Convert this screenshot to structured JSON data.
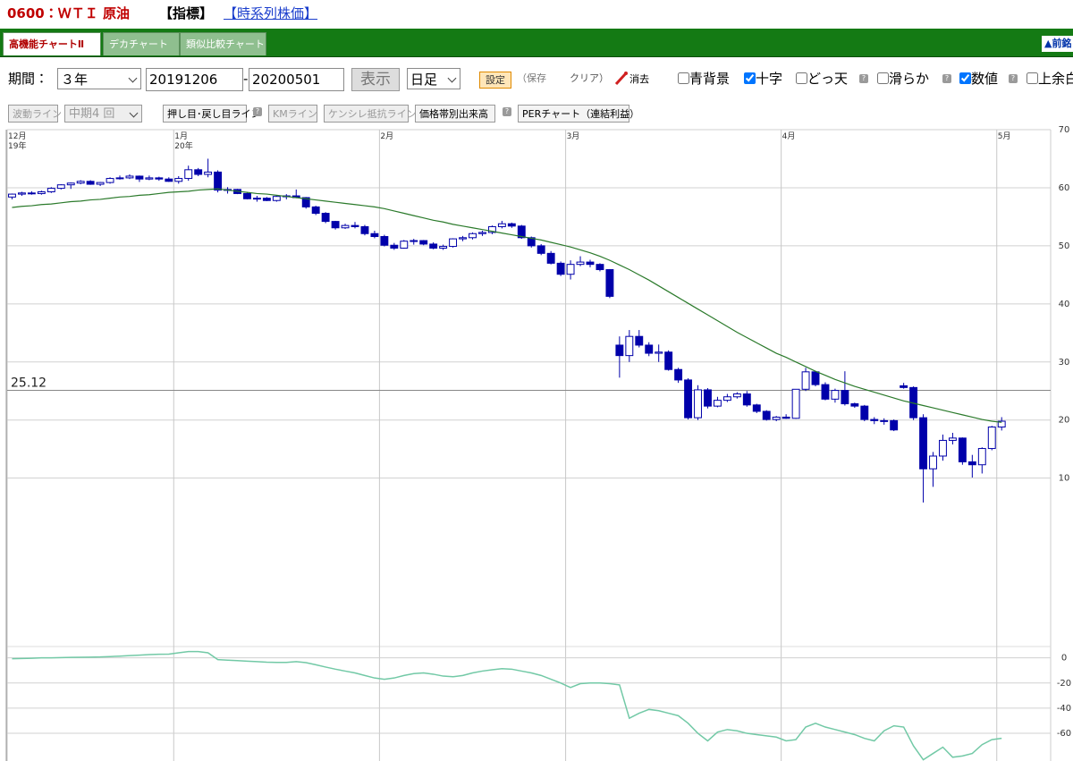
{
  "header": {
    "title": "0600：ＷＴＩ 原油",
    "indicator": "【指標】",
    "link": "【時系列株価】"
  },
  "tabs": [
    "高機能チャートⅡ",
    "デカチャート",
    "類似比較チャート"
  ],
  "prev_button": "▲前銘",
  "help_mark": "?",
  "toolbar": {
    "period_label": "期間：",
    "period": "３年",
    "start": "20191206",
    "dash": "-",
    "end": "20200501",
    "show": "表示",
    "interval": "日足",
    "settings": "設定",
    "save": "（保存",
    "clear": "クリア）",
    "erase": "消去",
    "options": [
      {
        "label": "青背景",
        "checked": false
      },
      {
        "label": "十字",
        "checked": true
      },
      {
        "label": "どっ天",
        "checked": false
      },
      {
        "label": "滑らか",
        "checked": false
      },
      {
        "label": "数値",
        "checked": true
      },
      {
        "label": "上余白",
        "checked": false
      }
    ]
  },
  "toolbar2": {
    "wave": "波動ライン",
    "term": "中期4 回",
    "pushback": "押し目･戻し目ライン",
    "km": "KMライン",
    "kenshire": "ケンシレ抵抗ライン",
    "volume_profile": "価格帯別出来高",
    "per": "PERチャート（連結利益）"
  },
  "chart_data": [
    {
      "type": "candlestick",
      "open": [
        58.4,
        58.9,
        59.1,
        59.0,
        59.3,
        59.9,
        60.5,
        60.8,
        61.1,
        60.6,
        60.9,
        61.6,
        61.7,
        62.0,
        61.5,
        61.7,
        61.5,
        61.1,
        61.6,
        63.1,
        62.3,
        62.7,
        59.6,
        59.7,
        59.0,
        58.1,
        58.2,
        57.8,
        58.5,
        58.6,
        58.3,
        56.7,
        55.6,
        54.2,
        53.1,
        53.5,
        53.3,
        52.1,
        51.6,
        50.1,
        49.6,
        50.8,
        50.9,
        50.3,
        49.6,
        49.9,
        51.2,
        51.4,
        52.1,
        52.3,
        53.3,
        53.8,
        53.4,
        51.4,
        50.0,
        48.7,
        47.0,
        45.1,
        46.8,
        47.2,
        46.8,
        45.9,
        32.9,
        31.1,
        34.4,
        32.9,
        31.5,
        31.7,
        28.7,
        26.9,
        20.4,
        25.2,
        22.4,
        23.4,
        24.0,
        24.5,
        22.6,
        21.5,
        20.1,
        20.5,
        20.3,
        25.3,
        28.3,
        26.1,
        23.6,
        25.1,
        22.8,
        22.4,
        20.1,
        19.9,
        19.9,
        25.9,
        25.6,
        20.4,
        11.6,
        13.8,
        16.5,
        16.9,
        12.8,
        12.3,
        15.1,
        18.8
      ],
      "high": [
        59.0,
        59.3,
        59.4,
        59.5,
        60.1,
        60.6,
        60.9,
        61.3,
        61.3,
        61.0,
        61.8,
        62.1,
        62.3,
        62.1,
        62.1,
        61.9,
        61.8,
        62.0,
        63.8,
        63.4,
        65.0,
        63.0,
        60.1,
        59.8,
        59.3,
        58.6,
        58.4,
        58.7,
        58.9,
        59.7,
        58.4,
        56.9,
        55.8,
        54.3,
        53.8,
        54.1,
        53.6,
        52.6,
        51.9,
        50.5,
        51.0,
        51.2,
        51.0,
        50.6,
        50.2,
        51.3,
        51.7,
        52.3,
        52.6,
        53.5,
        54.3,
        54.0,
        53.6,
        51.6,
        50.3,
        49.1,
        47.3,
        47.5,
        48.2,
        47.6,
        47.0,
        46.0,
        34.4,
        35.5,
        35.5,
        33.4,
        33.0,
        32.0,
        29.0,
        27.2,
        26.0,
        25.5,
        24.0,
        24.5,
        24.8,
        25.0,
        22.8,
        21.7,
        20.7,
        21.0,
        25.3,
        29.0,
        28.5,
        26.5,
        25.4,
        28.4,
        23.0,
        22.6,
        20.5,
        20.3,
        20.1,
        26.4,
        25.8,
        21.0,
        14.5,
        17.5,
        17.8,
        17.0,
        14.0,
        15.3,
        19.0,
        20.5
      ],
      "low": [
        58.0,
        58.6,
        58.8,
        58.8,
        59.1,
        59.7,
        59.8,
        60.6,
        60.5,
        60.3,
        60.7,
        61.4,
        61.5,
        61.0,
        61.3,
        61.2,
        61.0,
        60.7,
        61.2,
        62.0,
        61.8,
        59.2,
        59.0,
        58.9,
        58.0,
        57.6,
        57.7,
        57.6,
        58.0,
        58.2,
        56.4,
        55.3,
        53.9,
        52.8,
        52.9,
        53.0,
        51.8,
        51.3,
        49.9,
        49.3,
        49.5,
        50.2,
        50.1,
        49.4,
        49.3,
        49.7,
        50.8,
        51.1,
        51.7,
        52.0,
        53.0,
        53.1,
        51.2,
        49.7,
        48.4,
        46.8,
        44.8,
        44.2,
        46.5,
        46.3,
        45.6,
        41.0,
        27.3,
        30.0,
        32.5,
        31.0,
        30.0,
        28.5,
        26.4,
        20.1,
        20.0,
        22.0,
        22.2,
        23.1,
        23.7,
        22.3,
        21.2,
        19.9,
        19.8,
        20.2,
        20.2,
        25.0,
        25.8,
        23.4,
        23.0,
        22.5,
        22.1,
        19.8,
        19.3,
        19.2,
        18.1,
        25.4,
        20.0,
        5.8,
        8.5,
        13.0,
        15.8,
        12.3,
        10.1,
        10.8,
        14.8,
        18.2
      ],
      "close": [
        58.9,
        59.1,
        59.0,
        59.3,
        59.9,
        60.5,
        60.8,
        61.1,
        60.6,
        60.9,
        61.6,
        61.7,
        62.0,
        61.5,
        61.7,
        61.5,
        61.1,
        61.6,
        63.1,
        62.3,
        62.7,
        59.6,
        59.7,
        59.0,
        58.1,
        58.2,
        57.8,
        58.5,
        58.6,
        58.3,
        56.7,
        55.6,
        54.2,
        53.1,
        53.5,
        53.3,
        52.1,
        51.6,
        50.1,
        49.6,
        50.8,
        50.9,
        50.3,
        49.6,
        49.9,
        51.2,
        51.4,
        52.1,
        52.3,
        53.3,
        53.8,
        53.4,
        51.4,
        50.0,
        48.7,
        47.0,
        45.1,
        46.8,
        47.2,
        46.8,
        45.9,
        41.3,
        31.1,
        34.4,
        32.9,
        31.5,
        31.7,
        28.7,
        26.9,
        20.4,
        25.2,
        22.4,
        23.4,
        24.0,
        24.5,
        22.6,
        21.5,
        20.1,
        20.5,
        20.3,
        25.3,
        28.3,
        26.1,
        23.6,
        25.1,
        22.8,
        22.4,
        20.1,
        19.9,
        19.9,
        18.3,
        25.6,
        20.4,
        11.6,
        13.8,
        16.5,
        16.9,
        12.8,
        12.3,
        15.1,
        18.8,
        19.8
      ],
      "ma_values": [
        56.6,
        56.8,
        56.9,
        57.1,
        57.2,
        57.4,
        57.6,
        57.7,
        57.9,
        58.0,
        58.2,
        58.4,
        58.5,
        58.7,
        58.8,
        59.0,
        59.2,
        59.3,
        59.4,
        59.6,
        59.7,
        59.8,
        59.6,
        59.4,
        59.2,
        59.0,
        58.9,
        58.7,
        58.5,
        58.3,
        58.1,
        57.9,
        57.7,
        57.5,
        57.3,
        57.1,
        56.9,
        56.7,
        56.4,
        56.0,
        55.6,
        55.2,
        54.8,
        54.4,
        54.1,
        53.7,
        53.4,
        53.1,
        52.8,
        52.5,
        52.2,
        51.9,
        51.6,
        51.3,
        51.0,
        50.6,
        50.2,
        49.8,
        49.3,
        48.8,
        48.2,
        47.5,
        46.7,
        45.9,
        45.0,
        44.1,
        43.1,
        42.1,
        41.1,
        40.1,
        39.1,
        38.1,
        37.1,
        36.1,
        35.1,
        34.2,
        33.3,
        32.4,
        31.5,
        30.8,
        30.0,
        29.2,
        28.4,
        27.7,
        27.0,
        26.4,
        25.8,
        25.3,
        24.8,
        24.3,
        23.8,
        23.3,
        22.9,
        22.5,
        22.1,
        21.7,
        21.3,
        20.9,
        20.5,
        20.1,
        19.8,
        19.6
      ],
      "ma_color": "#2b7a2b",
      "up_color": "#ffffff",
      "down_color": "#0000aa",
      "edge_color": "#0000aa",
      "xlim": [
        -0.5,
        106
      ],
      "xticks": [
        {
          "value": 0,
          "label": "12月",
          "sublabel": "19年"
        },
        {
          "value": 17,
          "label": "1月",
          "sublabel": "20年"
        },
        {
          "value": 38,
          "label": "2月"
        },
        {
          "value": 57,
          "label": "3月"
        },
        {
          "value": 79,
          "label": "4月"
        },
        {
          "value": 101,
          "label": "5月"
        }
      ],
      "ylim": [
        -19,
        70
      ],
      "yticks": [
        70,
        60,
        50,
        40,
        30,
        20,
        10
      ],
      "reference": {
        "value": 25.12,
        "label": "25.12"
      },
      "grid": true
    },
    {
      "type": "line",
      "values": [
        -0.7,
        -0.5,
        -0.3,
        0,
        0,
        0.2,
        0.4,
        0.5,
        0.6,
        0.7,
        1,
        1.4,
        1.8,
        2.2,
        2.6,
        2.9,
        3,
        4,
        5,
        5,
        4,
        -1.4,
        -1.8,
        -2.2,
        -2.6,
        -3,
        -3.4,
        -3.6,
        -3.6,
        -3,
        -3.8,
        -5.5,
        -7.3,
        -9,
        -10.5,
        -12,
        -14,
        -16,
        -17,
        -16,
        -14,
        -12.5,
        -12,
        -13,
        -14.5,
        -15,
        -14,
        -12,
        -10.5,
        -9.5,
        -8.6,
        -9,
        -10.5,
        -12,
        -14,
        -17,
        -20,
        -23.6,
        -20.5,
        -20,
        -20,
        -20.5,
        -21.5,
        -48,
        -44,
        -41,
        -42,
        -44,
        -46,
        -52,
        -60,
        -66,
        -59,
        -57,
        -58,
        -60,
        -61,
        -62,
        -63,
        -66,
        -65,
        -55,
        -52,
        -55,
        -57,
        -59,
        -61,
        -64,
        -66,
        -58,
        -54,
        -55,
        -70,
        -81,
        -76,
        -71,
        -79,
        -78,
        -76,
        -69,
        -65,
        -64
      ],
      "color": "#72c9a6",
      "xlim": [
        -0.5,
        106
      ],
      "ylim": [
        -82,
        9
      ],
      "yticks": [
        0,
        -20,
        -40,
        -60
      ],
      "grid": true
    }
  ]
}
